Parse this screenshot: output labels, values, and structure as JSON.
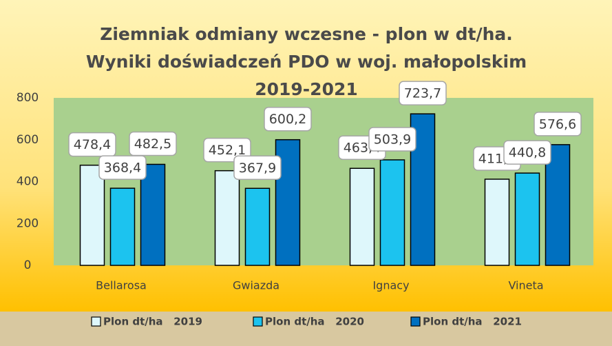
{
  "chart_data": {
    "type": "bar",
    "title": "Ziemniak odmiany wczesne - plon w dt/ha. Wyniki doświadczeń PDO w woj. małopolskim 2019-2021",
    "categories": [
      "Bellarosa",
      "Gwiazda",
      "Ignacy",
      "Vineta"
    ],
    "series": [
      {
        "name": "Plon dt/ha   2019",
        "color": "#def7fb",
        "values": [
          478.4,
          452.1,
          463.4,
          411.6
        ],
        "value_labels": [
          "478,4",
          "452,1",
          "463,4",
          "411,6"
        ]
      },
      {
        "name": "Plon dt/ha   2020",
        "color": "#1cc3ef",
        "values": [
          368.4,
          367.9,
          503.9,
          440.8
        ],
        "value_labels": [
          "368,4",
          "367,9",
          "503,9",
          "440,8"
        ]
      },
      {
        "name": "Plon dt/ha   2021",
        "color": "#0070c0",
        "values": [
          482.5,
          600.2,
          723.7,
          576.6
        ],
        "value_labels": [
          "482,5",
          "600,2",
          "723,7",
          "576,6"
        ]
      }
    ],
    "ylim": [
      0,
      800
    ],
    "yticks": [
      0,
      200,
      400,
      600,
      800
    ],
    "grid": false,
    "legend": "bottom"
  }
}
